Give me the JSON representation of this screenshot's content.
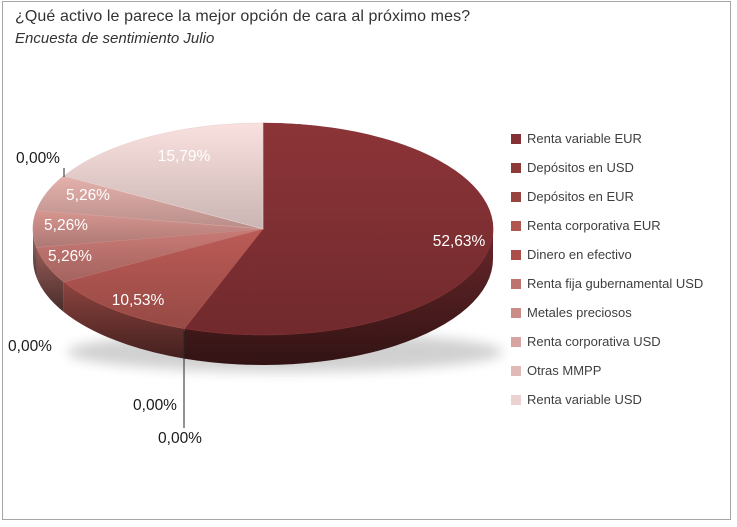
{
  "title": "¿Qué activo le parece la mejor opción de cara al próximo mes?",
  "subtitle": "Encuesta de sentimiento Julio",
  "chart_data": {
    "type": "pie",
    "style": "3d",
    "title": "¿Qué activo le parece la mejor opción de cara al próximo mes?",
    "subtitle": "Encuesta de sentimiento Julio",
    "legend_position": "right",
    "value_format": "percent, comma decimal separator",
    "series": [
      {
        "label": "Renta variable EUR",
        "value": 52.63,
        "display": "52,63%",
        "color": "#833134"
      },
      {
        "label": "Depósitos en USD",
        "value": 0,
        "display": "0,00%",
        "color": "#8D3A39"
      },
      {
        "label": "Depósitos en EUR",
        "value": 0,
        "display": "0,00%",
        "color": "#974340"
      },
      {
        "label": "Renta corporativa EUR",
        "value": 10.53,
        "display": "10,53%",
        "color": "#B05550"
      },
      {
        "label": "Dinero en efectivo",
        "value": 0,
        "display": "0,00%",
        "color": "#AC4F4A"
      },
      {
        "label": "Renta fija gubernamental USD",
        "value": 5.26,
        "display": "5,26%",
        "color": "#BD736E"
      },
      {
        "label": "Metales preciosos",
        "value": 5.26,
        "display": "5,26%",
        "color": "#C98C87"
      },
      {
        "label": "Renta corporativa USD",
        "value": 5.26,
        "display": "5,26%",
        "color": "#D6A5A1"
      },
      {
        "label": "Otras MMPP",
        "value": 0,
        "display": "0,00%",
        "color": "#DFBAB7"
      },
      {
        "label": "Renta variable USD",
        "value": 15.79,
        "display": "15,79%",
        "color": "#EAD2D0"
      }
    ]
  }
}
